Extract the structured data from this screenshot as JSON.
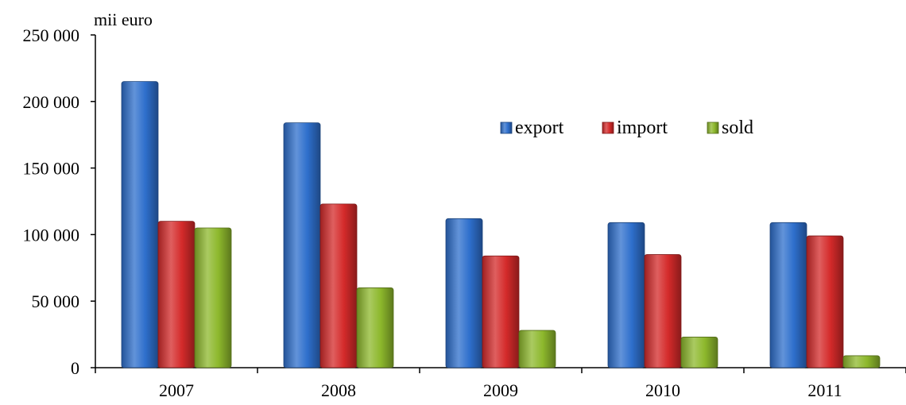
{
  "chart_data": {
    "type": "bar",
    "categories": [
      "2007",
      "2008",
      "2009",
      "2010",
      "2011"
    ],
    "series": [
      {
        "name": "export",
        "values": [
          215000,
          184000,
          112000,
          109000,
          109000
        ],
        "color": "#2e6fcc"
      },
      {
        "name": "import",
        "values": [
          110000,
          123000,
          84000,
          85000,
          99000
        ],
        "color": "#d42a2a"
      },
      {
        "name": "sold",
        "values": [
          105000,
          60000,
          28000,
          23000,
          9000
        ],
        "color": "#8db82c"
      }
    ],
    "ylabel": "mii euro",
    "ylim": [
      0,
      250000
    ],
    "yticks": [
      0,
      50000,
      100000,
      150000,
      200000,
      250000
    ],
    "ytick_labels": [
      "0",
      "50 000",
      "100 000",
      "150 000",
      "200 000",
      "250 000"
    ],
    "legend_position": "top-right",
    "grid": false
  }
}
